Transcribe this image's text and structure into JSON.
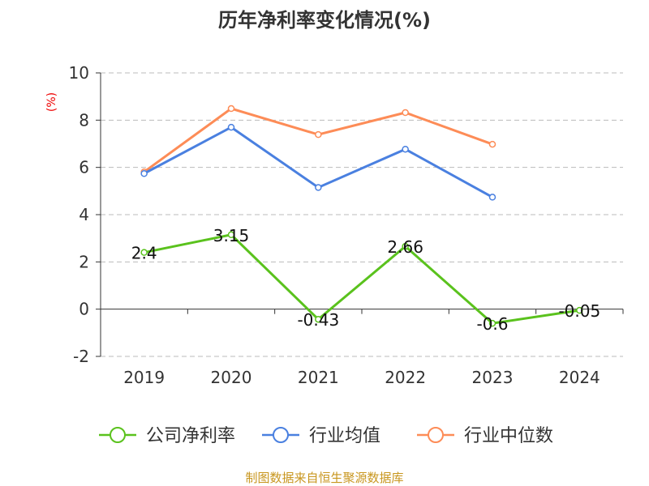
{
  "chart_data": {
    "type": "line",
    "title": "历年净利率变化情况(%)",
    "ylabel": "(%)",
    "categories": [
      "2019",
      "2020",
      "2021",
      "2022",
      "2023",
      "2024"
    ],
    "ylim": [
      -2,
      10
    ],
    "yticks": [
      "-2",
      "0",
      "2",
      "4",
      "6",
      "8",
      "10"
    ],
    "grid": true,
    "legend_position": "bottom",
    "series": [
      {
        "name": "公司净利率",
        "color": "#5ac21d",
        "values": [
          2.4,
          3.15,
          -0.43,
          2.66,
          -0.6,
          -0.05
        ],
        "labels": [
          "2.4",
          "3.15",
          "-0.43",
          "2.66",
          "-0.6",
          "-0.05"
        ]
      },
      {
        "name": "行业均值",
        "color": "#4a80e0",
        "values": [
          5.74,
          7.7,
          5.15,
          6.77,
          4.74,
          null
        ]
      },
      {
        "name": "行业中位数",
        "color": "#fd8c57",
        "values": [
          5.81,
          8.49,
          7.39,
          8.32,
          6.98,
          null
        ]
      }
    ],
    "source": "制图数据来自恒生聚源数据库"
  }
}
